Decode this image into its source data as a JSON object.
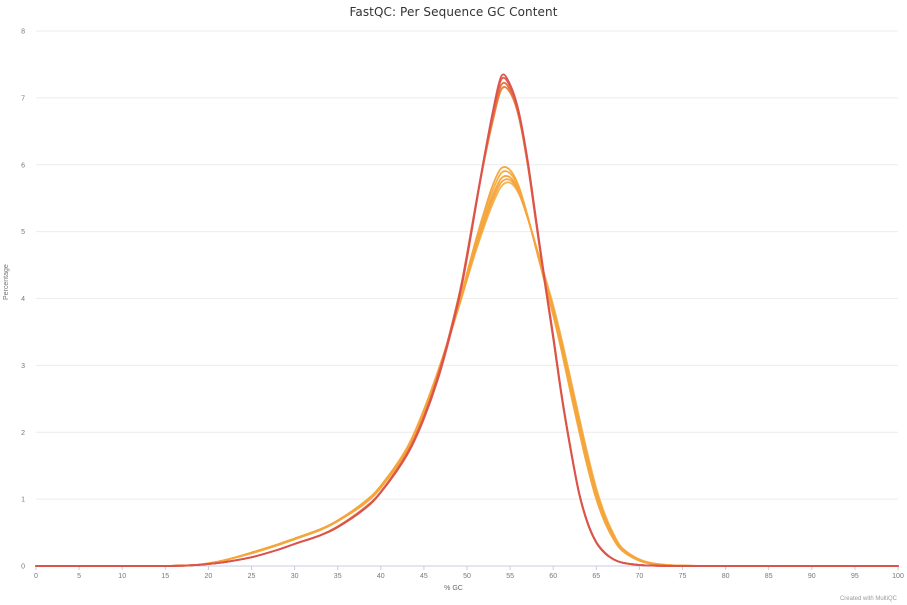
{
  "chart_data": {
    "type": "line",
    "title": "FastQC: Per Sequence GC Content",
    "xlabel": "% GC",
    "ylabel": "Percentage",
    "credit": "Created with MultiQC",
    "xlim": [
      0,
      100
    ],
    "ylim": [
      0,
      8
    ],
    "x_ticks": [
      0,
      5,
      10,
      15,
      20,
      25,
      30,
      35,
      40,
      45,
      50,
      55,
      60,
      65,
      70,
      75,
      80,
      85,
      90,
      95,
      100
    ],
    "y_ticks": [
      0,
      1,
      2,
      3,
      4,
      5,
      6,
      7,
      8
    ],
    "grid": true,
    "legend": "none",
    "x": [
      0,
      10,
      15,
      18,
      20,
      22,
      25,
      28,
      30,
      33,
      35,
      38,
      40,
      43,
      45,
      47,
      49,
      50,
      51,
      52,
      53,
      54,
      55,
      56,
      57,
      58,
      59,
      60,
      61,
      62,
      63,
      64,
      65,
      66,
      67,
      68,
      70,
      72,
      75,
      80,
      90,
      100
    ],
    "series": [
      {
        "color": "#d9534f",
        "values": [
          0,
          0,
          0,
          0.01,
          0.03,
          0.06,
          0.13,
          0.24,
          0.33,
          0.46,
          0.58,
          0.84,
          1.1,
          1.65,
          2.2,
          2.95,
          3.95,
          4.6,
          5.35,
          6.1,
          6.8,
          7.33,
          7.2,
          6.8,
          6.1,
          5.2,
          4.3,
          3.45,
          2.55,
          1.78,
          1.1,
          0.65,
          0.36,
          0.2,
          0.1,
          0.05,
          0.015,
          0.005,
          0,
          0,
          0,
          0
        ]
      },
      {
        "color": "#e0573f",
        "values": [
          0,
          0,
          0,
          0.01,
          0.03,
          0.06,
          0.13,
          0.24,
          0.33,
          0.46,
          0.58,
          0.85,
          1.1,
          1.66,
          2.22,
          2.98,
          3.98,
          4.64,
          5.38,
          6.12,
          6.78,
          7.28,
          7.17,
          6.78,
          6.08,
          5.18,
          4.28,
          3.43,
          2.53,
          1.76,
          1.09,
          0.64,
          0.35,
          0.19,
          0.1,
          0.05,
          0.015,
          0.005,
          0,
          0,
          0,
          0
        ]
      },
      {
        "color": "#e66a3a",
        "values": [
          0,
          0,
          0,
          0.01,
          0.03,
          0.06,
          0.13,
          0.24,
          0.33,
          0.46,
          0.59,
          0.85,
          1.11,
          1.67,
          2.23,
          3.0,
          4.0,
          4.66,
          5.4,
          6.1,
          6.72,
          7.2,
          7.12,
          6.74,
          6.05,
          5.15,
          4.26,
          3.41,
          2.52,
          1.76,
          1.09,
          0.64,
          0.35,
          0.19,
          0.1,
          0.05,
          0.015,
          0.005,
          0,
          0,
          0,
          0
        ]
      },
      {
        "color": "#ec7a35",
        "values": [
          0,
          0,
          0,
          0.01,
          0.03,
          0.06,
          0.13,
          0.24,
          0.33,
          0.46,
          0.59,
          0.86,
          1.11,
          1.68,
          2.24,
          3.01,
          4.01,
          4.66,
          5.38,
          6.06,
          6.66,
          7.13,
          7.08,
          6.72,
          6.03,
          5.14,
          4.25,
          3.4,
          2.51,
          1.75,
          1.08,
          0.63,
          0.35,
          0.19,
          0.1,
          0.05,
          0.015,
          0.005,
          0,
          0,
          0,
          0
        ]
      },
      {
        "color": "#f4a43a",
        "values": [
          0,
          0,
          0,
          0.01,
          0.04,
          0.09,
          0.19,
          0.31,
          0.4,
          0.54,
          0.67,
          0.92,
          1.17,
          1.72,
          2.3,
          3.02,
          3.88,
          4.38,
          4.86,
          5.3,
          5.7,
          5.95,
          5.92,
          5.68,
          5.25,
          4.75,
          4.25,
          3.75,
          3.2,
          2.6,
          2.02,
          1.47,
          1.0,
          0.65,
          0.4,
          0.23,
          0.08,
          0.025,
          0.005,
          0,
          0,
          0
        ]
      },
      {
        "color": "#f5ab3d",
        "values": [
          0,
          0,
          0,
          0.01,
          0.04,
          0.09,
          0.19,
          0.31,
          0.4,
          0.54,
          0.67,
          0.93,
          1.18,
          1.73,
          2.31,
          3.03,
          3.88,
          4.36,
          4.83,
          5.25,
          5.62,
          5.88,
          5.87,
          5.65,
          5.24,
          4.76,
          4.27,
          3.78,
          3.24,
          2.65,
          2.07,
          1.52,
          1.04,
          0.68,
          0.42,
          0.24,
          0.08,
          0.025,
          0.005,
          0,
          0,
          0
        ]
      },
      {
        "color": "#f3a03a",
        "values": [
          0,
          0,
          0,
          0.01,
          0.04,
          0.09,
          0.2,
          0.32,
          0.41,
          0.55,
          0.68,
          0.94,
          1.19,
          1.74,
          2.32,
          3.04,
          3.87,
          4.33,
          4.78,
          5.18,
          5.54,
          5.8,
          5.81,
          5.61,
          5.23,
          4.77,
          4.3,
          3.82,
          3.29,
          2.71,
          2.13,
          1.57,
          1.08,
          0.71,
          0.44,
          0.25,
          0.09,
          0.03,
          0.005,
          0,
          0,
          0
        ]
      },
      {
        "color": "#f2a83f",
        "values": [
          0,
          0,
          0,
          0.01,
          0.04,
          0.09,
          0.2,
          0.32,
          0.41,
          0.55,
          0.68,
          0.94,
          1.2,
          1.75,
          2.33,
          3.05,
          3.86,
          4.3,
          4.73,
          5.12,
          5.48,
          5.74,
          5.77,
          5.59,
          5.22,
          4.78,
          4.32,
          3.86,
          3.33,
          2.76,
          2.18,
          1.62,
          1.12,
          0.74,
          0.46,
          0.26,
          0.09,
          0.03,
          0.005,
          0,
          0,
          0
        ]
      },
      {
        "color": "#f6b148",
        "values": [
          0,
          0,
          0,
          0.01,
          0.04,
          0.09,
          0.2,
          0.32,
          0.41,
          0.55,
          0.68,
          0.95,
          1.2,
          1.76,
          2.34,
          3.05,
          3.85,
          4.28,
          4.7,
          5.08,
          5.42,
          5.68,
          5.73,
          5.57,
          5.22,
          4.79,
          4.35,
          3.9,
          3.38,
          2.81,
          2.23,
          1.67,
          1.16,
          0.77,
          0.48,
          0.27,
          0.1,
          0.03,
          0.005,
          0,
          0,
          0
        ]
      }
    ]
  }
}
